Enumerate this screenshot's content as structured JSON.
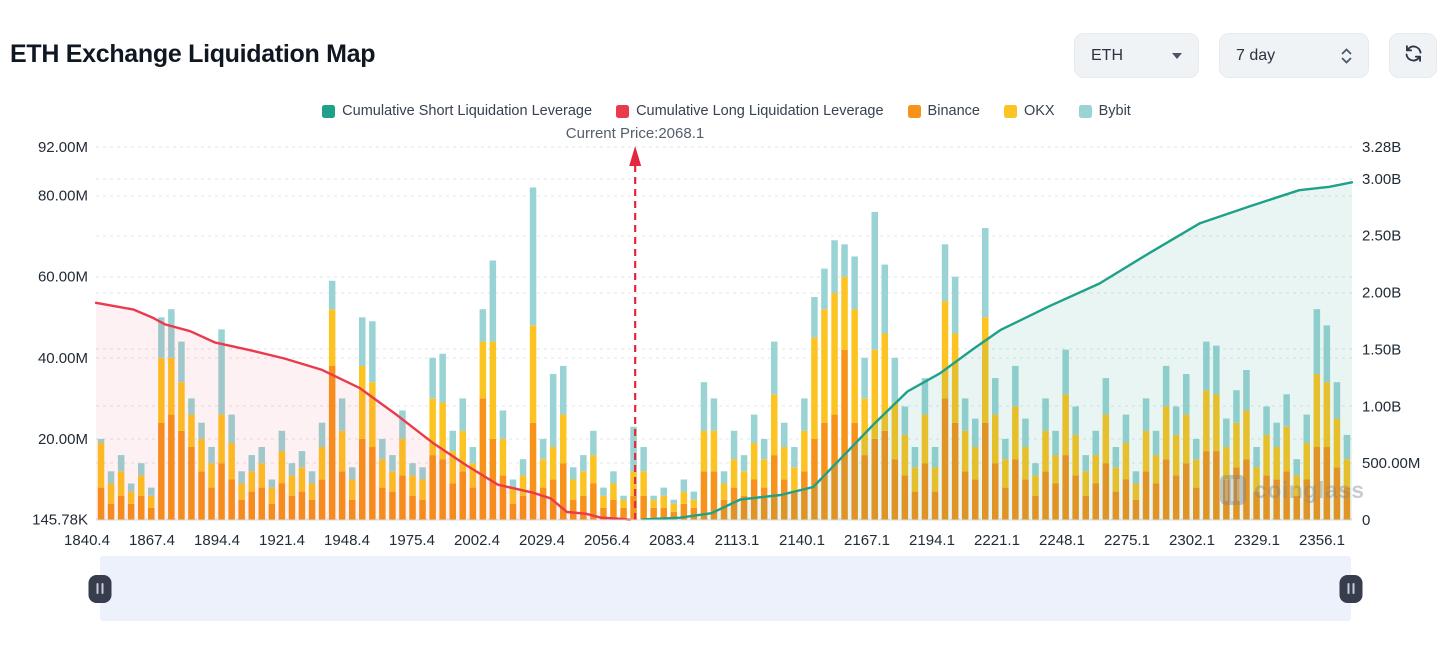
{
  "header": {
    "title": "ETH Exchange Liquidation Map"
  },
  "controls": {
    "coin_selected": "ETH",
    "range_selected": "7 day",
    "refresh_icon": "refresh-cycle-icon"
  },
  "legend": {
    "items": [
      {
        "label": "Cumulative Short Liquidation Leverage",
        "color": "#1fa189",
        "type": "line"
      },
      {
        "label": "Cumulative Long Liquidation Leverage",
        "color": "#ea3b4e",
        "type": "line"
      },
      {
        "label": "Binance",
        "color": "#f7931a",
        "type": "bar"
      },
      {
        "label": "OKX",
        "color": "#fcc422",
        "type": "bar"
      },
      {
        "label": "Bybit",
        "color": "#9ad3d4",
        "type": "bar"
      }
    ]
  },
  "current_price_text": "Current Price:2068.1",
  "watermark_text": "coinglass",
  "chart_data": {
    "type": "bar",
    "title": "ETH Exchange Liquidation Map",
    "current_price": 2068.1,
    "x_ticks": [
      "1840.4",
      "1867.4",
      "1894.4",
      "1921.4",
      "1948.4",
      "1975.4",
      "2002.4",
      "2029.4",
      "2056.4",
      "2083.4",
      "2113.1",
      "2140.1",
      "2167.1",
      "2194.1",
      "2221.1",
      "2248.1",
      "2275.1",
      "2302.1",
      "2329.1",
      "2356.1"
    ],
    "left_axis": {
      "unit": "USD",
      "max_value_m": 92.0,
      "ticks": [
        {
          "label": "92.00M",
          "value_m": 92.0
        },
        {
          "label": "80.00M",
          "value_m": 80.0
        },
        {
          "label": "60.00M",
          "value_m": 60.0
        },
        {
          "label": "40.00M",
          "value_m": 40.0
        },
        {
          "label": "20.00M",
          "value_m": 20.0
        },
        {
          "label": "145.78K",
          "value_m": 0.14578
        }
      ]
    },
    "right_axis": {
      "unit": "USD",
      "max_value_b": 3.28,
      "ticks": [
        {
          "label": "3.28B",
          "value_b": 3.28
        },
        {
          "label": "3.00B",
          "value_b": 3.0
        },
        {
          "label": "2.50B",
          "value_b": 2.5
        },
        {
          "label": "2.00B",
          "value_b": 2.0
        },
        {
          "label": "1.50B",
          "value_b": 1.5
        },
        {
          "label": "1.00B",
          "value_b": 1.0
        },
        {
          "label": "500.00M",
          "value_b": 0.5
        },
        {
          "label": "0",
          "value_b": 0
        }
      ]
    },
    "bars": {
      "unit": "USD (millions)",
      "series_order": [
        "Binance",
        "OKX",
        "Bybit"
      ],
      "stacks_m": [
        [
          8,
          11,
          1
        ],
        [
          4,
          5,
          3
        ],
        [
          6,
          6,
          4
        ],
        [
          4,
          3,
          2
        ],
        [
          6,
          5,
          3
        ],
        [
          3,
          3,
          2
        ],
        [
          24,
          16,
          10
        ],
        [
          26,
          14,
          12
        ],
        [
          22,
          12,
          10
        ],
        [
          18,
          8,
          4
        ],
        [
          12,
          8,
          4
        ],
        [
          8,
          6,
          4
        ],
        [
          14,
          12,
          21
        ],
        [
          10,
          9,
          7
        ],
        [
          5,
          4,
          3
        ],
        [
          7,
          5,
          4
        ],
        [
          8,
          6,
          4
        ],
        [
          4,
          4,
          2
        ],
        [
          9,
          8,
          5
        ],
        [
          6,
          5,
          3
        ],
        [
          7,
          6,
          4
        ],
        [
          5,
          4,
          3
        ],
        [
          10,
          8,
          6
        ],
        [
          38,
          14,
          7
        ],
        [
          12,
          10,
          8
        ],
        [
          5,
          5,
          3
        ],
        [
          20,
          18,
          12
        ],
        [
          18,
          16,
          15
        ],
        [
          8,
          7,
          5
        ],
        [
          7,
          5,
          4
        ],
        [
          11,
          9,
          7
        ],
        [
          6,
          5,
          3
        ],
        [
          5,
          5,
          3
        ],
        [
          16,
          14,
          10
        ],
        [
          15,
          14,
          12
        ],
        [
          9,
          8,
          5
        ],
        [
          12,
          10,
          8
        ],
        [
          8,
          6,
          4
        ],
        [
          30,
          14,
          8
        ],
        [
          20,
          24,
          20
        ],
        [
          11,
          9,
          7
        ],
        [
          4,
          4,
          2
        ],
        [
          6,
          5,
          4
        ],
        [
          24,
          24,
          34
        ],
        [
          8,
          7,
          5
        ],
        [
          10,
          8,
          18
        ],
        [
          14,
          12,
          12
        ],
        [
          5,
          5,
          3
        ],
        [
          6,
          6,
          4
        ],
        [
          9,
          7,
          6
        ],
        [
          3,
          3,
          2
        ],
        [
          5,
          4,
          3
        ],
        [
          3,
          2,
          1
        ],
        [
          6,
          6,
          11
        ],
        [
          6,
          6,
          6
        ],
        [
          3,
          2,
          1
        ],
        [
          3,
          3,
          2
        ],
        [
          2,
          2,
          1
        ],
        [
          4,
          3,
          3
        ],
        [
          3,
          2,
          2
        ],
        [
          12,
          10,
          12
        ],
        [
          12,
          10,
          8
        ],
        [
          5,
          4,
          3
        ],
        [
          8,
          7,
          7
        ],
        [
          6,
          6,
          4
        ],
        [
          10,
          9,
          7
        ],
        [
          8,
          7,
          5
        ],
        [
          16,
          15,
          13
        ],
        [
          10,
          8,
          6
        ],
        [
          7,
          6,
          5
        ],
        [
          12,
          10,
          8
        ],
        [
          20,
          25,
          10
        ],
        [
          24,
          28,
          10
        ],
        [
          26,
          30,
          13
        ],
        [
          42,
          18,
          8
        ],
        [
          24,
          28,
          13
        ],
        [
          16,
          14,
          10
        ],
        [
          20,
          22,
          34
        ],
        [
          22,
          24,
          17
        ],
        [
          15,
          14,
          11
        ],
        [
          11,
          10,
          7
        ],
        [
          7,
          6,
          5
        ],
        [
          14,
          12,
          9
        ],
        [
          7,
          6,
          5
        ],
        [
          30,
          24,
          14
        ],
        [
          24,
          22,
          14
        ],
        [
          12,
          10,
          8
        ],
        [
          10,
          8,
          7
        ],
        [
          24,
          26,
          22
        ],
        [
          14,
          12,
          9
        ],
        [
          8,
          7,
          5
        ],
        [
          15,
          13,
          10
        ],
        [
          10,
          8,
          7
        ],
        [
          6,
          5,
          3
        ],
        [
          12,
          10,
          8
        ],
        [
          9,
          7,
          6
        ],
        [
          16,
          15,
          11
        ],
        [
          11,
          10,
          7
        ],
        [
          6,
          6,
          4
        ],
        [
          9,
          7,
          6
        ],
        [
          14,
          12,
          9
        ],
        [
          7,
          6,
          5
        ],
        [
          10,
          9,
          7
        ],
        [
          5,
          4,
          3
        ],
        [
          12,
          10,
          8
        ],
        [
          9,
          7,
          6
        ],
        [
          15,
          13,
          10
        ],
        [
          11,
          10,
          7
        ],
        [
          14,
          12,
          10
        ],
        [
          8,
          7,
          5
        ],
        [
          17,
          15,
          12
        ],
        [
          17,
          14,
          12
        ],
        [
          10,
          8,
          7
        ],
        [
          13,
          11,
          8
        ],
        [
          15,
          12,
          10
        ],
        [
          7,
          6,
          5
        ],
        [
          11,
          10,
          7
        ],
        [
          10,
          8,
          6
        ],
        [
          12,
          11,
          8
        ],
        [
          6,
          5,
          4
        ],
        [
          10,
          9,
          7
        ],
        [
          18,
          18,
          16
        ],
        [
          18,
          16,
          14
        ],
        [
          13,
          12,
          9
        ],
        [
          8,
          7,
          6
        ]
      ]
    },
    "lines": [
      {
        "name": "Cumulative Long Liquidation Leverage",
        "axis": "right",
        "unit": "USD (billions)",
        "points_frac_value_b": [
          [
            0,
            1.91
          ],
          [
            0.015,
            1.88
          ],
          [
            0.03,
            1.85
          ],
          [
            0.045,
            1.78
          ],
          [
            0.055,
            1.72
          ],
          [
            0.075,
            1.66
          ],
          [
            0.095,
            1.56
          ],
          [
            0.12,
            1.5
          ],
          [
            0.15,
            1.42
          ],
          [
            0.18,
            1.32
          ],
          [
            0.21,
            1.16
          ],
          [
            0.24,
            0.92
          ],
          [
            0.268,
            0.68
          ],
          [
            0.295,
            0.48
          ],
          [
            0.32,
            0.31
          ],
          [
            0.348,
            0.24
          ],
          [
            0.362,
            0.19
          ],
          [
            0.375,
            0.07
          ],
          [
            0.39,
            0.055
          ],
          [
            0.402,
            0.02
          ],
          [
            0.415,
            0.012
          ],
          [
            0.425,
            0.002
          ]
        ]
      },
      {
        "name": "Cumulative Short Liquidation Leverage",
        "axis": "right",
        "unit": "USD (billions)",
        "points_frac_value_b": [
          [
            0.435,
            0.005
          ],
          [
            0.465,
            0.02
          ],
          [
            0.49,
            0.06
          ],
          [
            0.513,
            0.18
          ],
          [
            0.545,
            0.22
          ],
          [
            0.571,
            0.29
          ],
          [
            0.592,
            0.53
          ],
          [
            0.619,
            0.84
          ],
          [
            0.646,
            1.13
          ],
          [
            0.672,
            1.29
          ],
          [
            0.698,
            1.5
          ],
          [
            0.72,
            1.67
          ],
          [
            0.759,
            1.88
          ],
          [
            0.799,
            2.08
          ],
          [
            0.839,
            2.35
          ],
          [
            0.879,
            2.61
          ],
          [
            0.919,
            2.76
          ],
          [
            0.958,
            2.9
          ],
          [
            0.982,
            2.93
          ],
          [
            1,
            2.97
          ]
        ]
      }
    ],
    "grid": "dashed-horizontal",
    "legend_position": "top-center"
  },
  "ui_colors": {
    "long_fill_opacity": "0.07",
    "short_fill_opacity": "0.10",
    "price_line": "#e2273e",
    "gridline": "#e2e5ea",
    "axis_text": "#222b36"
  }
}
